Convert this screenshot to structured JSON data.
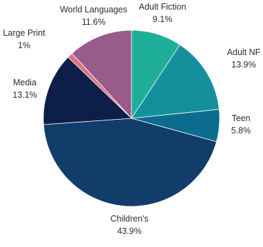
{
  "chart_data": {
    "type": "pie",
    "title": "",
    "slices": [
      {
        "label": "Adult Fiction",
        "value_label": "9.1%",
        "value": 9.1,
        "color": "#1fae99"
      },
      {
        "label": "Adult NF",
        "value_label": "13.9%",
        "value": 13.9,
        "color": "#14909d"
      },
      {
        "label": "Teen",
        "value_label": "5.8%",
        "value": 5.8,
        "color": "#0c6c8d"
      },
      {
        "label": "Children's",
        "value_label": "43.9%",
        "value": 43.9,
        "color": "#123d6a"
      },
      {
        "label": "Media",
        "value_label": "13.1%",
        "value": 13.1,
        "color": "#0d1e48"
      },
      {
        "label": "Large Print",
        "value_label": "1%",
        "value": 1.0,
        "color": "#db7383"
      },
      {
        "label": "World Languages",
        "value_label": "11.6%",
        "value": 11.6,
        "color": "#995c8a"
      }
    ]
  }
}
